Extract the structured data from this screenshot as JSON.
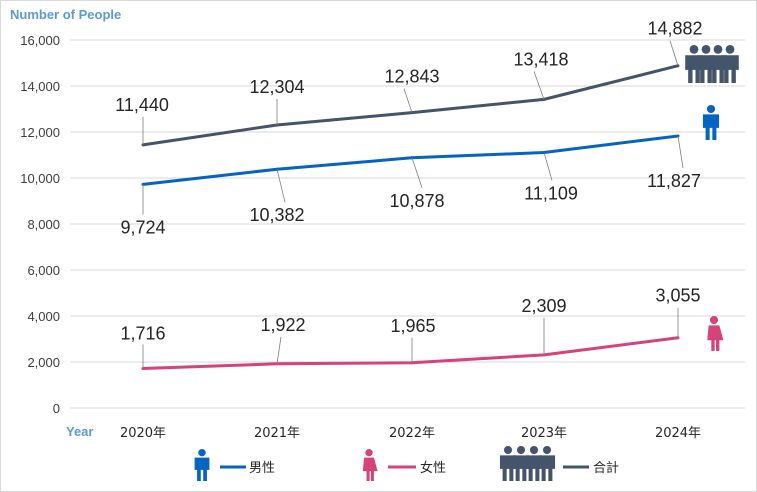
{
  "chart_data": {
    "type": "line",
    "ylabel": "Number of People",
    "xlabel": "Year",
    "ylim": [
      0,
      16000
    ],
    "yticks": [
      0,
      2000,
      4000,
      6000,
      8000,
      10000,
      12000,
      14000,
      16000
    ],
    "ytick_labels": [
      "0",
      "2,000",
      "4,000",
      "6,000",
      "8,000",
      "10,000",
      "12,000",
      "14,000",
      "16,000"
    ],
    "categories": [
      "2020年",
      "2021年",
      "2022年",
      "2023年",
      "2024年"
    ],
    "grid": true,
    "legend_position": "bottom",
    "series": [
      {
        "key": "total",
        "name": "合計",
        "color": "#44546a",
        "icon": "group-people-icon",
        "values": [
          11440,
          12304,
          12843,
          13418,
          14882
        ],
        "labels": [
          "11,440",
          "12,304",
          "12,843",
          "13,418",
          "14,882"
        ]
      },
      {
        "key": "male",
        "name": "男性",
        "color": "#0563c1",
        "icon": "male-person-icon",
        "values": [
          9724,
          10382,
          10878,
          11109,
          11827
        ],
        "labels": [
          "9,724",
          "10,382",
          "10,878",
          "11,109",
          "11,827"
        ]
      },
      {
        "key": "female",
        "name": "女性",
        "color": "#d6427a",
        "icon": "female-person-icon",
        "values": [
          1716,
          1922,
          1965,
          2309,
          3055
        ],
        "labels": [
          "1,716",
          "1,922",
          "1,965",
          "2,309",
          "3,055"
        ]
      }
    ]
  }
}
